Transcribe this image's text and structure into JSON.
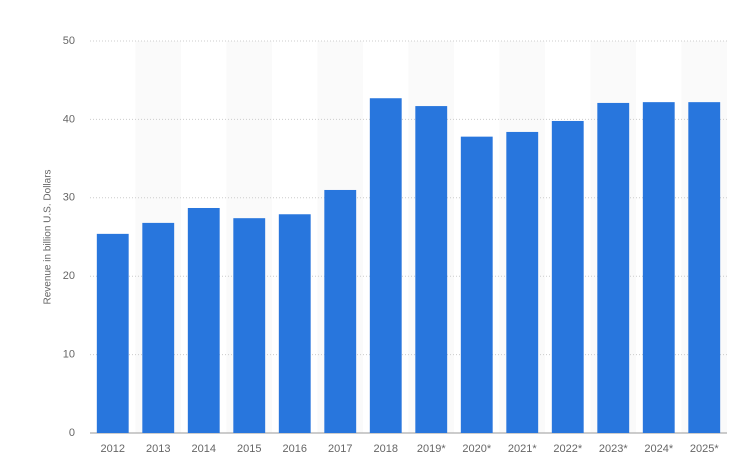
{
  "chart_data": {
    "type": "bar",
    "y_label": "Revenue in billion U.S. Dollars",
    "categories": [
      "2012",
      "2013",
      "2014",
      "2015",
      "2016",
      "2017",
      "2018",
      "2019*",
      "2020*",
      "2021*",
      "2022*",
      "2023*",
      "2024*",
      "2025*"
    ],
    "values": [
      25.4,
      26.8,
      28.7,
      27.4,
      27.9,
      31.0,
      42.7,
      41.7,
      37.8,
      38.4,
      39.8,
      42.1,
      42.2,
      42.2
    ],
    "color": "#2876dd",
    "ylim": [
      0,
      50
    ],
    "yticks": [
      0,
      10,
      20,
      30,
      40,
      50
    ],
    "grid": true
  }
}
